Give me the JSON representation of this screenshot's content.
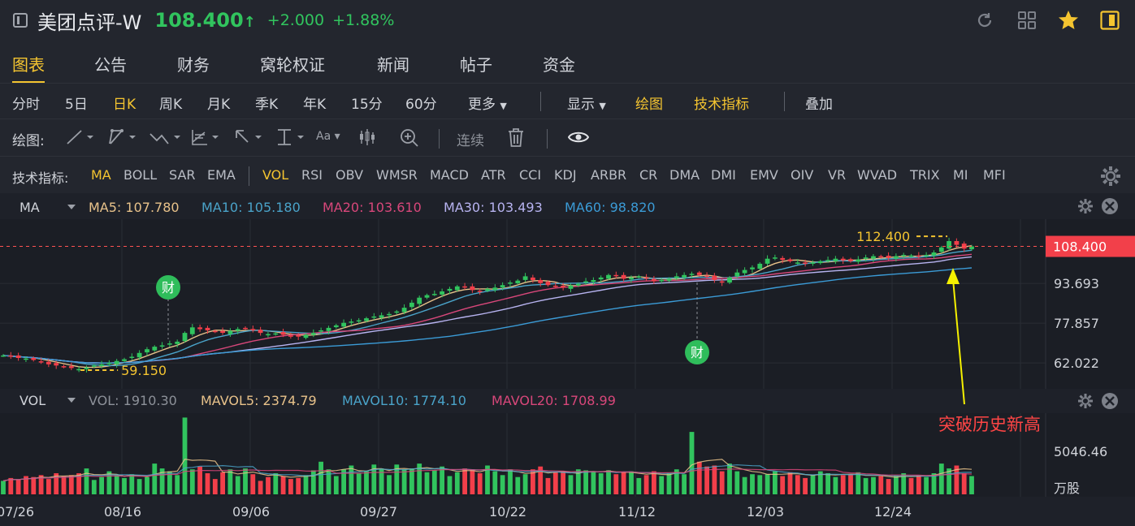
{
  "header": {
    "name": "美团点评-W",
    "price": "108.400",
    "change": "+2.000",
    "pct": "+1.88%",
    "up_color": "#31c45e"
  },
  "tabs": [
    "图表",
    "公告",
    "财务",
    "窝轮权证",
    "新闻",
    "帖子",
    "资金"
  ],
  "periods": [
    "分时",
    "5日",
    "日K",
    "周K",
    "月K",
    "季K",
    "年K",
    "15分",
    "60分",
    "更多"
  ],
  "period_tools": [
    "显示",
    "绘图",
    "技术指标",
    "叠加"
  ],
  "draw_bar": {
    "label": "绘图:",
    "continuous": "连续"
  },
  "indicators": {
    "label": "技术指标:",
    "items": [
      "MA",
      "BOLL",
      "SAR",
      "EMA",
      "VOL",
      "RSI",
      "OBV",
      "WMSR",
      "MACD",
      "ATR",
      "CCI",
      "KDJ",
      "ARBR",
      "CR",
      "DMA",
      "DMI",
      "EMV",
      "OIV",
      "VR",
      "WVAD",
      "TRIX",
      "MI",
      "MFI"
    ]
  },
  "ma_legend": {
    "name": "MA",
    "ma5": "MA5: 107.780",
    "ma10": "MA10: 105.180",
    "ma20": "MA20: 103.610",
    "ma30": "MA30: 103.493",
    "ma60": "MA60: 98.820",
    "colors": {
      "ma5": "#e8c28a",
      "ma10": "#4aa3c9",
      "ma20": "#d8477a",
      "ma30": "#b7b3f0",
      "ma60": "#3b9bd6"
    }
  },
  "vol_legend": {
    "name": "VOL",
    "vol": "VOL: 1910.30",
    "mavol5": "MAVOL5: 2374.79",
    "mavol10": "MAVOL10: 1774.10",
    "mavol20": "MAVOL20: 1708.99"
  },
  "chart_data": {
    "type": "candlestick",
    "x_ticks": [
      "07/26",
      "08/16",
      "09/06",
      "09/27",
      "10/22",
      "11/12",
      "12/03",
      "12/24"
    ],
    "price_axis": [
      "93.693",
      "77.857",
      "62.022"
    ],
    "price_range": [
      54,
      116
    ],
    "current_price": "108.400",
    "high_label": "112.400",
    "low_label": "59.150",
    "volume_axis": [
      "5046.46",
      "万股"
    ],
    "finance_marker": "财",
    "annotation": "突破历史新高",
    "close_series": [
      65,
      64.5,
      64,
      63.8,
      63.2,
      62.5,
      61.5,
      61,
      60.5,
      60,
      59.6,
      60.2,
      61,
      61.5,
      62,
      62.8,
      63.5,
      64.5,
      66,
      67.5,
      68.5,
      69,
      69.8,
      70.5,
      74,
      76.2,
      75.5,
      75,
      74.5,
      74,
      74.8,
      75.5,
      75.8,
      75,
      74,
      73.5,
      73.8,
      73.2,
      72.8,
      72.5,
      73.2,
      74,
      75,
      76,
      77,
      78,
      78.5,
      79,
      79.8,
      80.5,
      81,
      81.5,
      82.5,
      84,
      86,
      88,
      89,
      89.5,
      90.5,
      91.5,
      92.5,
      92,
      91,
      90.5,
      91.5,
      92,
      93,
      94,
      94.8,
      96.5,
      95,
      93.8,
      93,
      92.5,
      92,
      92.8,
      93.5,
      94.5,
      95,
      96,
      97,
      96.5,
      95.5,
      96,
      96.5,
      95.5,
      94.5,
      95,
      95.5,
      96.5,
      97,
      97.5,
      97,
      96.5,
      95,
      94,
      96,
      98,
      99,
      100,
      101.5,
      103.5,
      104,
      103,
      102.5,
      102,
      101.5,
      102,
      102.5,
      103,
      103.5,
      102.8,
      102.5,
      103.2,
      104,
      104.5,
      104.2,
      103.8,
      104.5,
      105,
      104.8,
      104.5,
      105,
      106,
      108,
      110.5,
      109,
      107.5,
      108.4
    ],
    "volume_series": [
      1.4,
      1.7,
      1.5,
      1.9,
      1.8,
      2.0,
      1.6,
      2.2,
      1.9,
      2.0,
      2.2,
      2.7,
      1.5,
      1.8,
      2.4,
      2.0,
      1.7,
      2.1,
      1.6,
      1.8,
      3.2,
      2.7,
      2.4,
      2.0,
      8.0,
      2.6,
      2.9,
      2.2,
      1.6,
      2.3,
      2.6,
      1.9,
      2.7,
      2.1,
      1.4,
      1.8,
      2.2,
      1.9,
      1.6,
      1.7,
      2.0,
      2.5,
      3.4,
      2.6,
      1.9,
      2.6,
      3.0,
      2.2,
      2.4,
      3.1,
      2.7,
      2.0,
      3.1,
      2.6,
      2.7,
      3.2,
      2.3,
      2.5,
      2.9,
      1.9,
      2.3,
      2.7,
      2.6,
      2.2,
      3.0,
      2.4,
      2.0,
      2.6,
      1.8,
      2.1,
      2.6,
      2.9,
      1.7,
      2.3,
      2.4,
      2.0,
      2.6,
      2.5,
      2.4,
      2.2,
      2.5,
      2.1,
      2.3,
      2.4,
      1.7,
      2.0,
      2.4,
      1.9,
      2.2,
      2.6,
      2.1,
      6.5,
      3.4,
      2.9,
      3.0,
      2.4,
      3.2,
      2.4,
      1.8,
      2.1,
      2.0,
      2.1,
      2.4,
      1.9,
      2.3,
      2.0,
      1.7,
      2.0,
      2.4,
      2.2,
      1.8,
      2.0,
      2.1,
      2.3,
      1.7,
      1.8,
      1.9,
      1.6,
      1.9,
      2.2,
      1.7,
      2.0,
      1.8,
      2.2,
      3.2,
      2.7,
      3.0,
      2.2,
      1.9
    ]
  }
}
